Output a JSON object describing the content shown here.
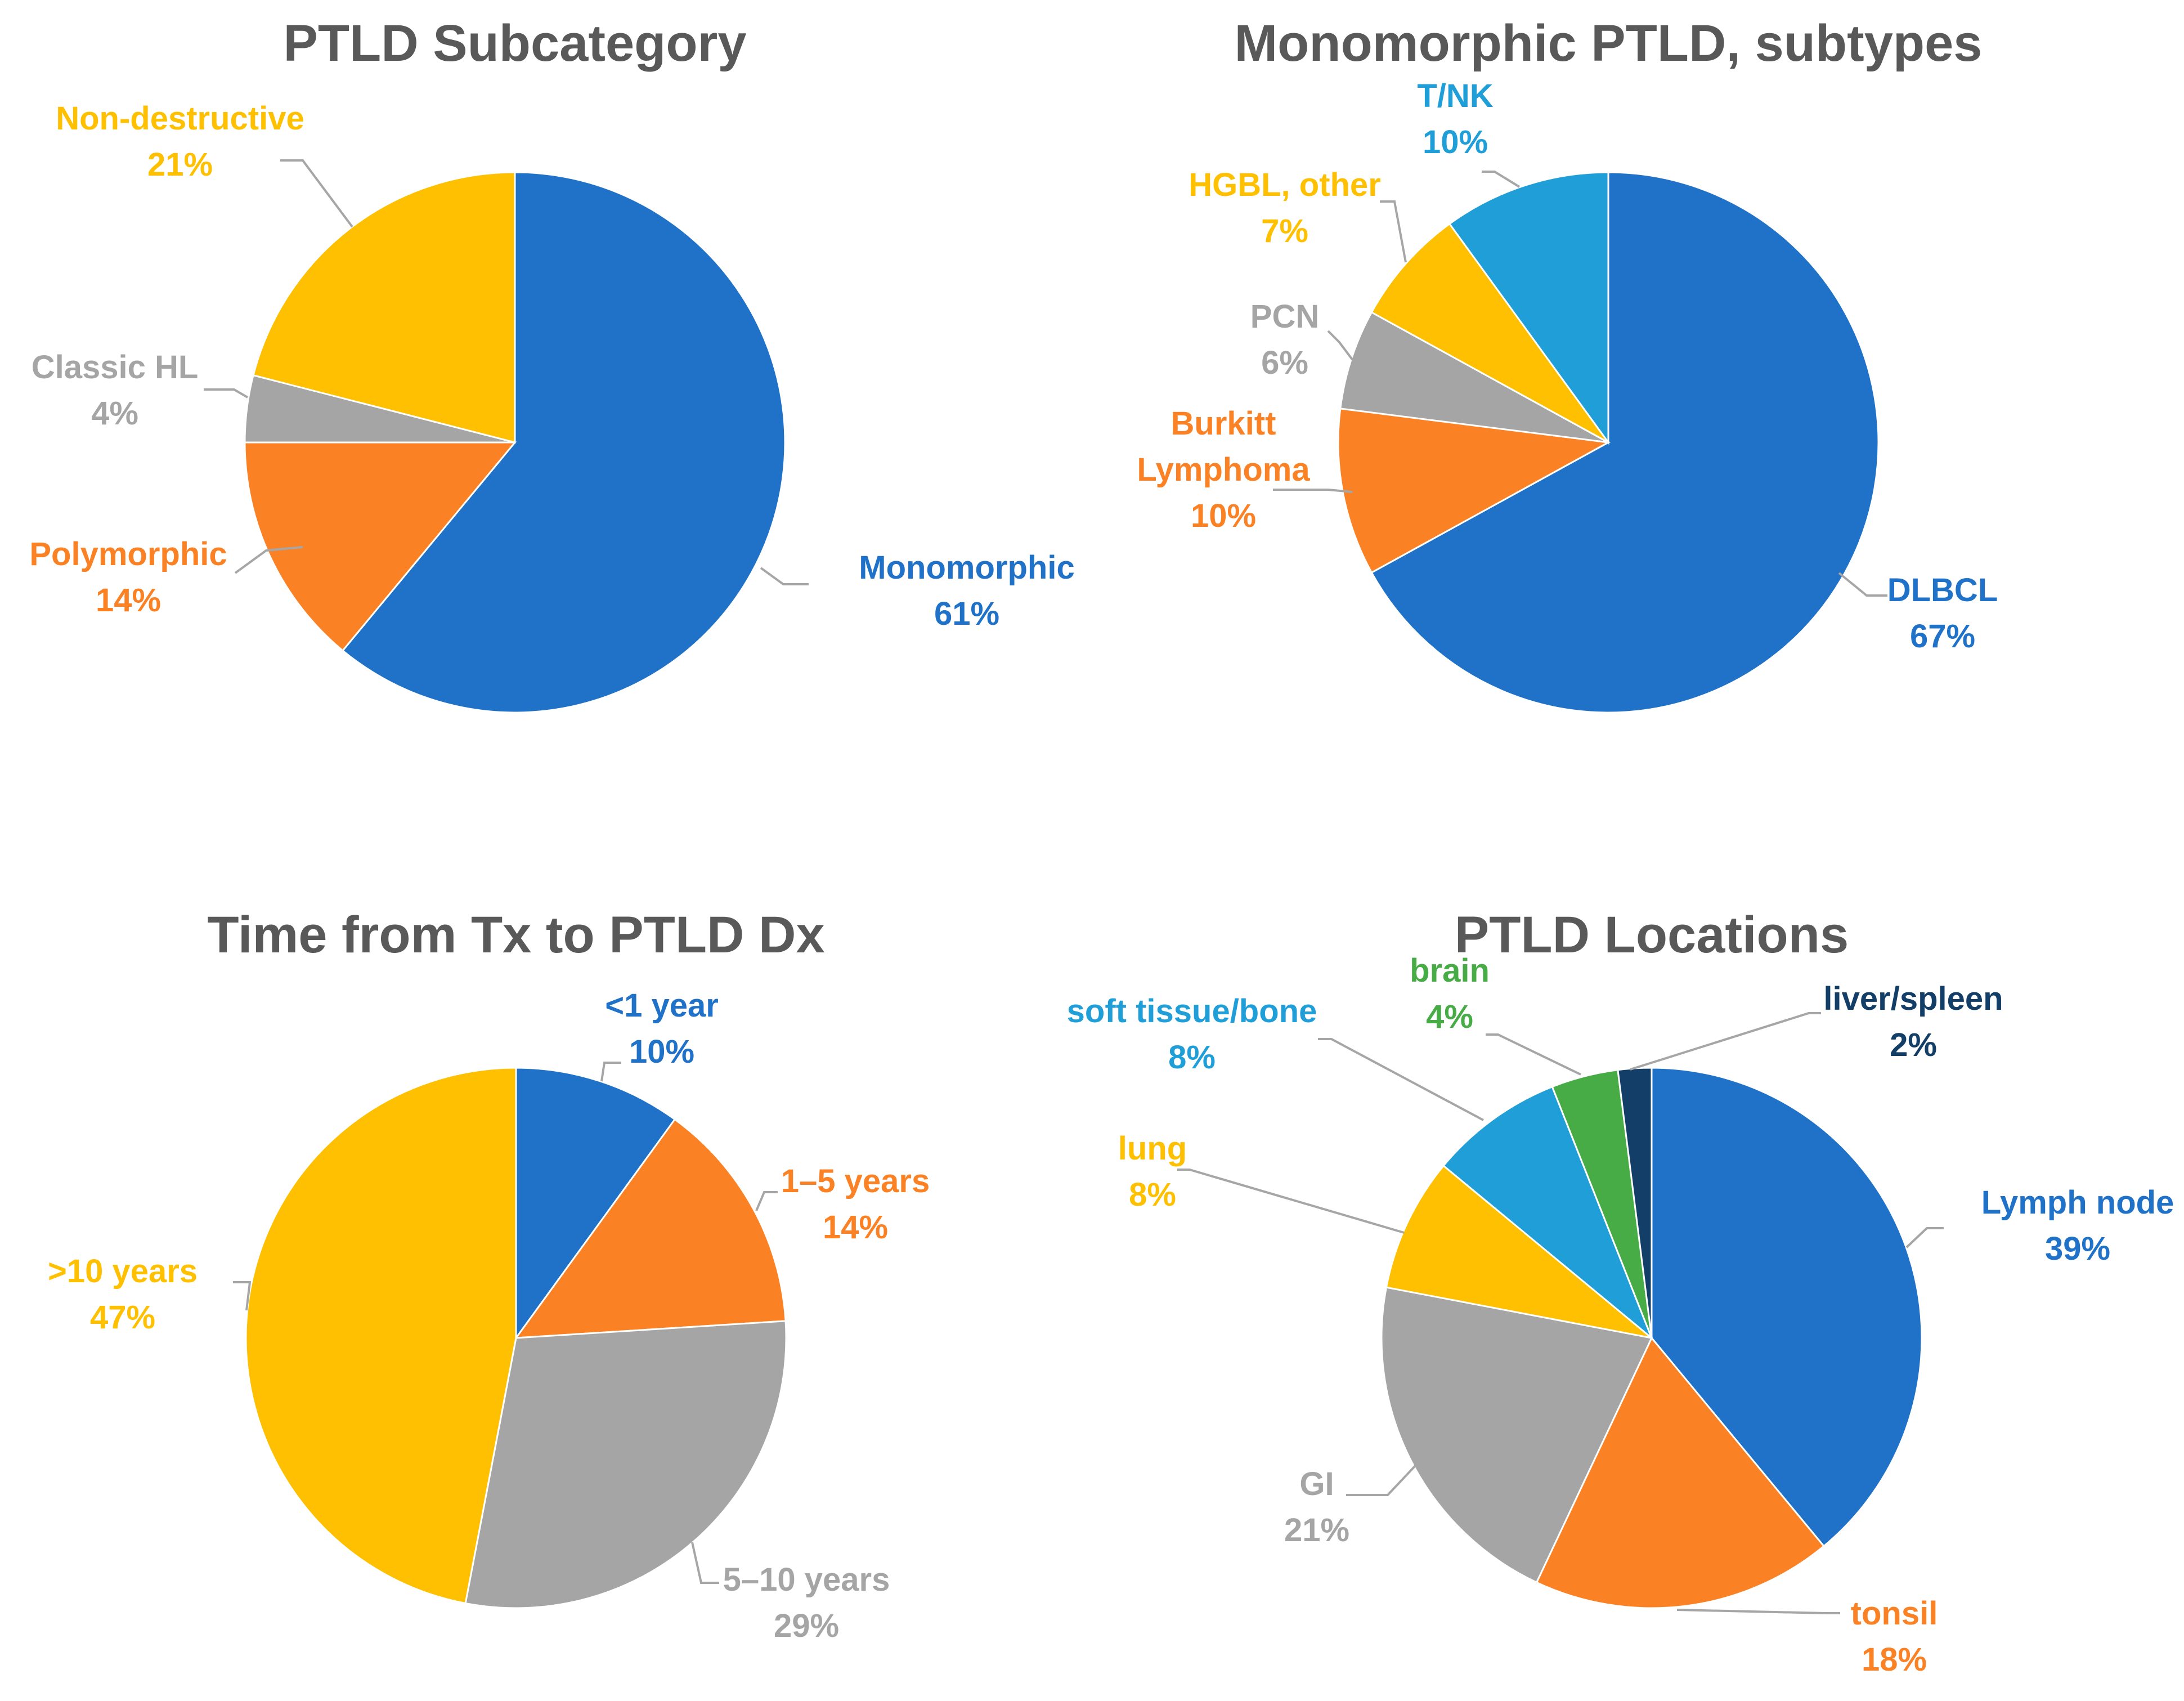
{
  "chart_data": [
    {
      "type": "pie",
      "title": "PTLD Subcategory",
      "slices": [
        {
          "label": "Monomorphic",
          "value": 61,
          "value_label": "61%",
          "color": "#1f72c8"
        },
        {
          "label": "Polymorphic",
          "value": 14,
          "value_label": "14%",
          "color": "#fb8125"
        },
        {
          "label": "Classic HL",
          "value": 4,
          "value_label": "4%",
          "color": "#a5a5a5"
        },
        {
          "label": "Non-destructive",
          "value": 21,
          "value_label": "21%",
          "color": "#fec000"
        }
      ]
    },
    {
      "type": "pie",
      "title": "Monomorphic PTLD, subtypes",
      "slices": [
        {
          "label": "DLBCL",
          "value": 67,
          "value_label": "67%",
          "color": "#1f72c8"
        },
        {
          "label": "Burkitt Lymphoma",
          "value": 10,
          "value_label": "10%",
          "color": "#fb8125"
        },
        {
          "label": "PCN",
          "value": 6,
          "value_label": "6%",
          "color": "#a5a5a5"
        },
        {
          "label": "HGBL, other",
          "value": 7,
          "value_label": "7%",
          "color": "#fec000"
        },
        {
          "label": "T/NK",
          "value": 10,
          "value_label": "10%",
          "color": "#1f9ed8"
        }
      ]
    },
    {
      "type": "pie",
      "title": "Time from Tx to PTLD Dx",
      "slices": [
        {
          "label": "<1 year",
          "value": 10,
          "value_label": "10%",
          "color": "#1f72c8"
        },
        {
          "label": "1–5 years",
          "value": 14,
          "value_label": "14%",
          "color": "#fb8125"
        },
        {
          "label": "5–10 years",
          "value": 29,
          "value_label": "29%",
          "color": "#a5a5a5"
        },
        {
          "label": ">10 years",
          "value": 47,
          "value_label": "47%",
          "color": "#fec000"
        }
      ]
    },
    {
      "type": "pie",
      "title": "PTLD Locations",
      "slices": [
        {
          "label": "Lymph node",
          "value": 39,
          "value_label": "39%",
          "color": "#1f72c8"
        },
        {
          "label": "tonsil",
          "value": 18,
          "value_label": "18%",
          "color": "#fb8125"
        },
        {
          "label": "GI",
          "value": 21,
          "value_label": "21%",
          "color": "#a5a5a5"
        },
        {
          "label": "lung",
          "value": 8,
          "value_label": "8%",
          "color": "#fec000"
        },
        {
          "label": "soft tissue/bone",
          "value": 8,
          "value_label": "8%",
          "color": "#1f9ed8"
        },
        {
          "label": "brain",
          "value": 4,
          "value_label": "4%",
          "color": "#47ac45"
        },
        {
          "label": "liver/spleen",
          "value": 2,
          "value_label": "2%",
          "color": "#133e68"
        }
      ]
    }
  ]
}
